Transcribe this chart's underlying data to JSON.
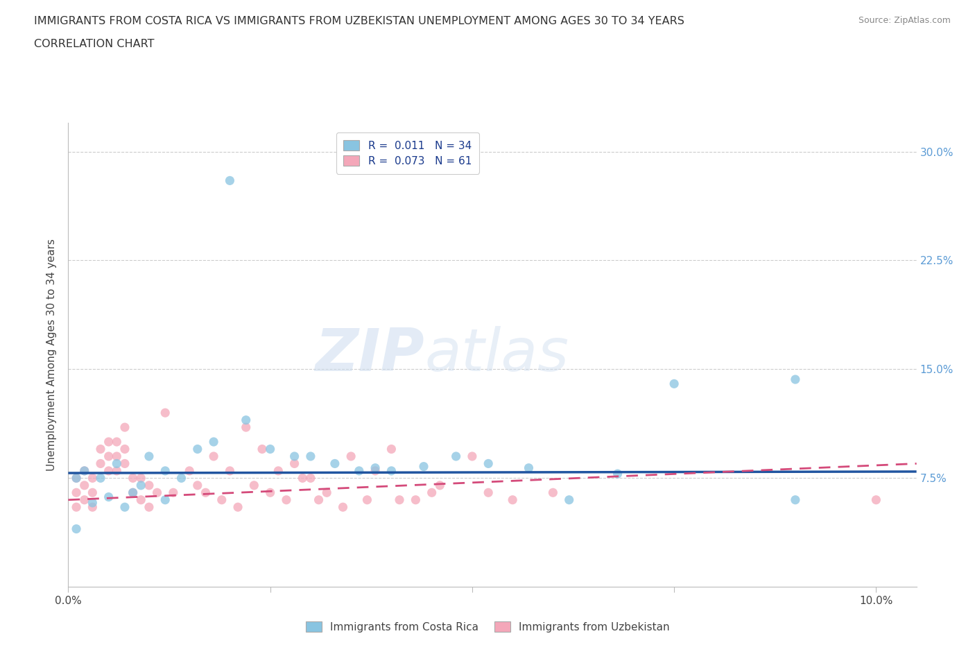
{
  "title_line1": "IMMIGRANTS FROM COSTA RICA VS IMMIGRANTS FROM UZBEKISTAN UNEMPLOYMENT AMONG AGES 30 TO 34 YEARS",
  "title_line2": "CORRELATION CHART",
  "source": "Source: ZipAtlas.com",
  "ylabel": "Unemployment Among Ages 30 to 34 years",
  "xlim": [
    0.0,
    0.105
  ],
  "ylim": [
    0.0,
    0.32
  ],
  "ytick_positions": [
    0.075,
    0.15,
    0.225,
    0.3
  ],
  "ytick_labels": [
    "7.5%",
    "15.0%",
    "22.5%",
    "30.0%"
  ],
  "color_blue": "#89c4e1",
  "color_pink": "#f4a7b9",
  "line_color_blue": "#2155a0",
  "line_color_pink": "#d44a7a",
  "watermark_zip": "ZIP",
  "watermark_atlas": "atlas",
  "cr_x": [
    0.02,
    0.001,
    0.002,
    0.004,
    0.006,
    0.008,
    0.01,
    0.012,
    0.014,
    0.016,
    0.018,
    0.022,
    0.025,
    0.028,
    0.03,
    0.033,
    0.036,
    0.038,
    0.04,
    0.044,
    0.048,
    0.052,
    0.057,
    0.062,
    0.068,
    0.075,
    0.09,
    0.001,
    0.003,
    0.005,
    0.007,
    0.009,
    0.012,
    0.09
  ],
  "cr_y": [
    0.28,
    0.075,
    0.08,
    0.075,
    0.085,
    0.065,
    0.09,
    0.08,
    0.075,
    0.095,
    0.1,
    0.115,
    0.095,
    0.09,
    0.09,
    0.085,
    0.08,
    0.082,
    0.08,
    0.083,
    0.09,
    0.085,
    0.082,
    0.06,
    0.078,
    0.14,
    0.143,
    0.04,
    0.058,
    0.062,
    0.055,
    0.07,
    0.06,
    0.06
  ],
  "uz_x": [
    0.001,
    0.001,
    0.001,
    0.002,
    0.002,
    0.002,
    0.003,
    0.003,
    0.003,
    0.004,
    0.004,
    0.005,
    0.005,
    0.005,
    0.006,
    0.006,
    0.006,
    0.007,
    0.007,
    0.007,
    0.008,
    0.008,
    0.009,
    0.009,
    0.01,
    0.01,
    0.011,
    0.012,
    0.013,
    0.015,
    0.016,
    0.018,
    0.02,
    0.022,
    0.024,
    0.026,
    0.028,
    0.03,
    0.032,
    0.035,
    0.038,
    0.04,
    0.043,
    0.046,
    0.05,
    0.052,
    0.055,
    0.06,
    0.017,
    0.019,
    0.021,
    0.023,
    0.025,
    0.027,
    0.029,
    0.031,
    0.034,
    0.037,
    0.041,
    0.045,
    0.1
  ],
  "uz_y": [
    0.065,
    0.075,
    0.055,
    0.06,
    0.07,
    0.08,
    0.055,
    0.065,
    0.075,
    0.085,
    0.095,
    0.1,
    0.09,
    0.08,
    0.1,
    0.09,
    0.08,
    0.11,
    0.095,
    0.085,
    0.075,
    0.065,
    0.075,
    0.06,
    0.07,
    0.055,
    0.065,
    0.12,
    0.065,
    0.08,
    0.07,
    0.09,
    0.08,
    0.11,
    0.095,
    0.08,
    0.085,
    0.075,
    0.065,
    0.09,
    0.08,
    0.095,
    0.06,
    0.07,
    0.09,
    0.065,
    0.06,
    0.065,
    0.065,
    0.06,
    0.055,
    0.07,
    0.065,
    0.06,
    0.075,
    0.06,
    0.055,
    0.06,
    0.06,
    0.065,
    0.06
  ],
  "cr_trend_x": [
    0.0,
    0.105
  ],
  "cr_trend_y": [
    0.0785,
    0.0795
  ],
  "uz_trend_x": [
    0.0,
    0.105
  ],
  "uz_trend_y": [
    0.06,
    0.085
  ]
}
